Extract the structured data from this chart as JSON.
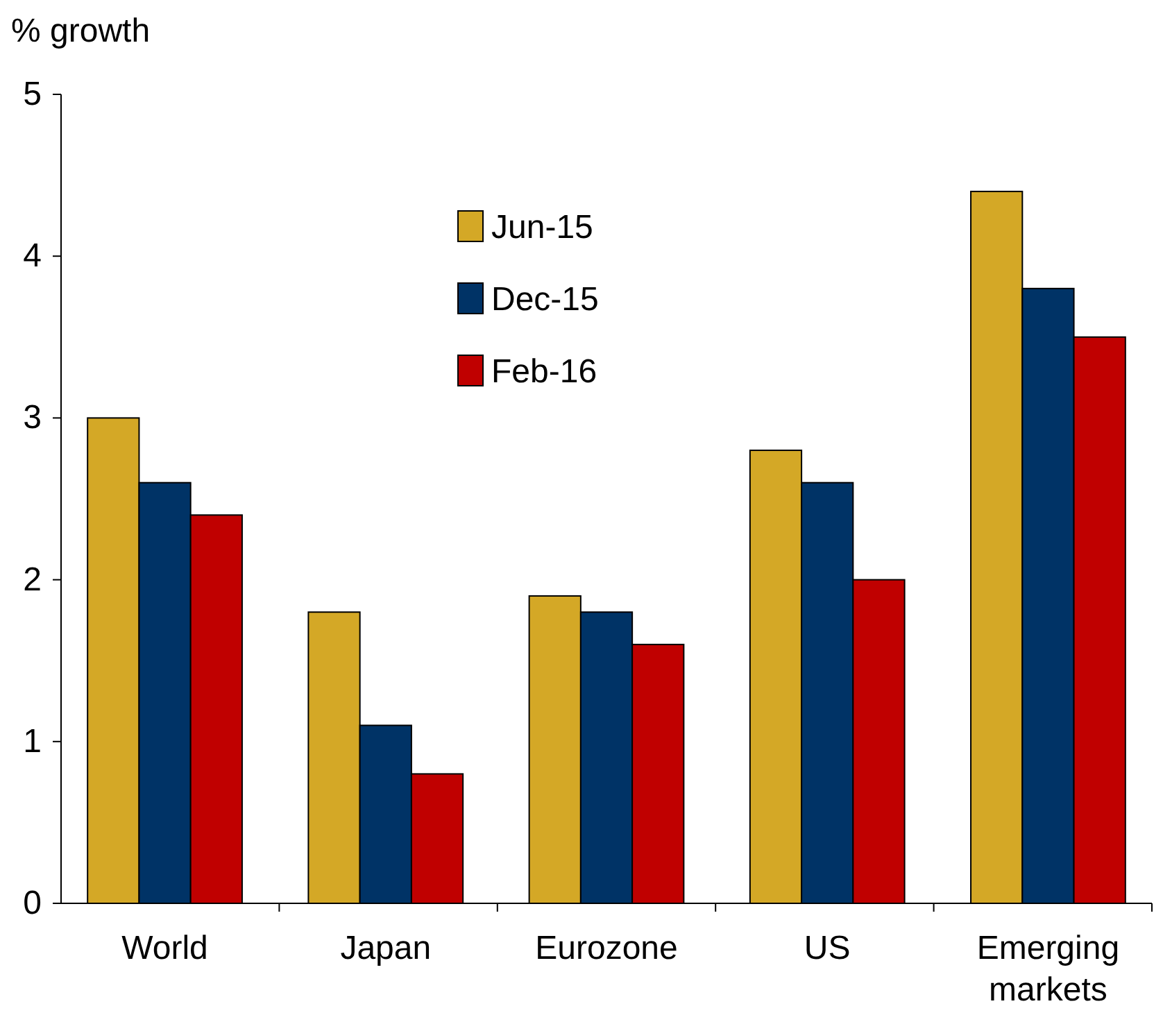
{
  "chart_data": {
    "type": "bar",
    "ylabel": "% growth",
    "categories": [
      "World",
      "Japan",
      "Eurozone",
      "US",
      "Emerging markets"
    ],
    "series": [
      {
        "name": "Jun-15",
        "color": "#d4a826",
        "values": [
          3.0,
          1.8,
          1.9,
          2.8,
          4.4
        ]
      },
      {
        "name": "Dec-15",
        "color": "#003366",
        "values": [
          2.6,
          1.1,
          1.8,
          2.6,
          3.8
        ]
      },
      {
        "name": "Feb-16",
        "color": "#c00000",
        "values": [
          2.4,
          0.8,
          1.6,
          2.0,
          3.5
        ]
      }
    ],
    "ylim": [
      0,
      5
    ],
    "yticks": [
      0,
      1,
      2,
      3,
      4,
      5
    ],
    "grid": false,
    "legend": "top"
  }
}
